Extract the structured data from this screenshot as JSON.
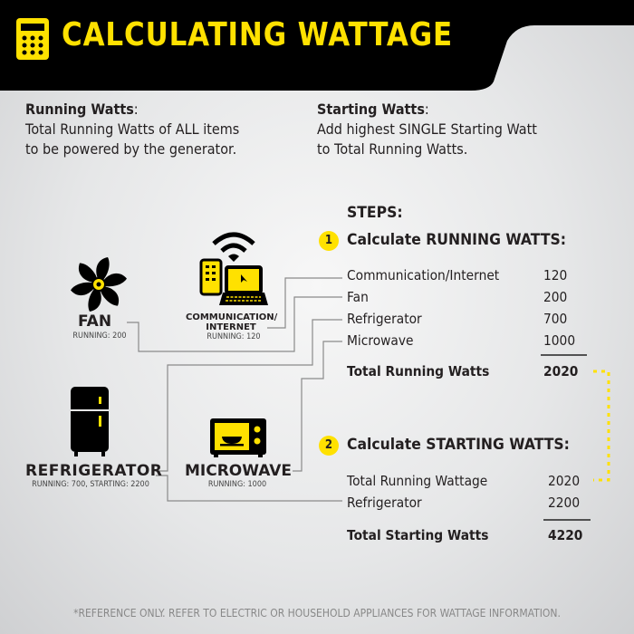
{
  "header": {
    "title": "CALCULATING WATTAGE",
    "icon": "calculator-icon"
  },
  "definitions": [
    {
      "term": "Running Watts",
      "line1": "Total Running Watts of ALL items",
      "line2": "to be powered by the generator."
    },
    {
      "term": "Starting Watts",
      "line1": "Add highest SINGLE Starting Watt",
      "line2": "to Total Running Watts."
    }
  ],
  "appliances": {
    "fan": {
      "name": "FAN",
      "detail": "RUNNING: 200",
      "icon": "fan-icon"
    },
    "comm": {
      "name1": "COMMUNICATION/",
      "name2": "INTERNET",
      "detail": "RUNNING: 120",
      "icon": "laptop-phone-wifi-icon"
    },
    "fridge": {
      "name": "REFRIGERATOR",
      "detail": "RUNNING: 700, STARTING: 2200",
      "icon": "refrigerator-icon"
    },
    "microwave": {
      "name": "MICROWAVE",
      "detail": "RUNNING: 1000",
      "icon": "microwave-icon"
    }
  },
  "steps": {
    "title": "STEPS:",
    "step1": {
      "num": "1",
      "title": "Calculate RUNNING WATTS:",
      "rows": [
        {
          "label": "Communication/Internet",
          "value": "120"
        },
        {
          "label": "Fan",
          "value": "200"
        },
        {
          "label": "Refrigerator",
          "value": "700"
        },
        {
          "label": "Microwave",
          "value": "1000"
        }
      ],
      "total": {
        "label": "Total Running Watts",
        "value": "2020"
      }
    },
    "step2": {
      "num": "2",
      "title": "Calculate STARTING WATTS:",
      "rows": [
        {
          "label": "Total Running Wattage",
          "value": "2020"
        },
        {
          "label": "Refrigerator",
          "value": "2200"
        }
      ],
      "total": {
        "label": "Total Starting Watts",
        "value": "4220"
      }
    }
  },
  "footer": "*REFERENCE ONLY. REFER TO ELECTRIC OR HOUSEHOLD APPLIANCES FOR WATTAGE INFORMATION.",
  "colors": {
    "accent": "#ffe100",
    "dark": "#000000"
  }
}
